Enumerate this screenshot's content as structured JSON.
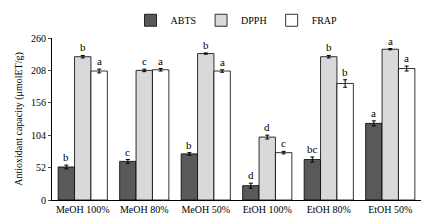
{
  "chart_data": {
    "type": "bar",
    "y_label": "Antioxidant capacity (μmolET/g)",
    "categories": [
      "MeOH 100%",
      "MeOH 80%",
      "MeOH 50%",
      "EtOH 100%",
      "EtOH 80%",
      "EtOH 50%"
    ],
    "series": [
      {
        "name": "ABTS",
        "color": "#595959",
        "values": [
          53,
          62,
          74,
          23,
          65,
          123
        ],
        "errors": [
          3,
          3,
          2,
          4,
          4,
          4
        ],
        "letters": [
          "b",
          "c",
          "b",
          "d",
          "bc",
          "a"
        ]
      },
      {
        "name": "DPPH",
        "color": "#d9d9d9",
        "values": [
          230,
          208,
          235,
          101,
          230,
          242
        ],
        "errors": [
          2,
          2,
          1,
          3,
          2,
          1
        ],
        "letters": [
          "b",
          "c",
          "b",
          "d",
          "b",
          "a"
        ]
      },
      {
        "name": "FRAP",
        "color": "#ffffff",
        "values": [
          207,
          209,
          207,
          76,
          187,
          211
        ],
        "errors": [
          3,
          2,
          2,
          2,
          6,
          4
        ],
        "letters": [
          "a",
          "a",
          "a",
          "c",
          "b",
          "a"
        ]
      }
    ],
    "ylim": [
      0,
      260
    ],
    "yticks": [
      0,
      52,
      104,
      156,
      208,
      260
    ],
    "grid": false,
    "legend": "top"
  }
}
